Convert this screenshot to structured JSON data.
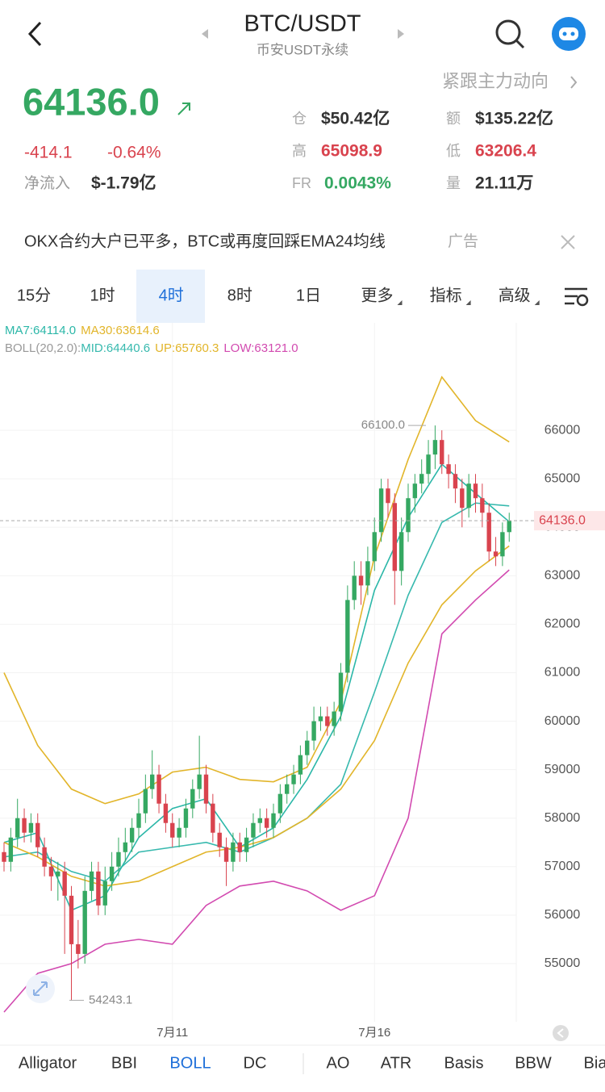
{
  "header": {
    "title": "BTC/USDT",
    "subtitle": "币安USDT永续",
    "promo": "紧跟主力动向"
  },
  "price": {
    "last": "64136.0",
    "change": "-414.1",
    "change_pct": "-0.64%",
    "net_inflow_label": "净流入",
    "net_inflow": "$-1.79亿"
  },
  "stats": [
    {
      "label": "仓",
      "value": "$50.42亿"
    },
    {
      "label": "额",
      "value": "$135.22亿"
    },
    {
      "label": "高",
      "value": "65098.9"
    },
    {
      "label": "低",
      "value": "63206.4"
    },
    {
      "label": "FR",
      "value": "0.0043%"
    },
    {
      "label": "量",
      "value": "21.11万"
    }
  ],
  "news": {
    "text": "OKX合约大户已平多，BTC或再度回踩EMA24均线",
    "tag": "广告"
  },
  "tabs": [
    "15分",
    "1时",
    "4时",
    "8时",
    "1日",
    "更多",
    "指标",
    "高级"
  ],
  "legend": {
    "row1": [
      "MA7:64114.0",
      "MA30:63614.6"
    ],
    "row2": [
      "BOLL(20,2.0):",
      "MID:64440.6",
      "UP:65760.3",
      "LOW:63121.0"
    ]
  },
  "bottom_tabs": [
    "Alligator",
    "BBI",
    "BOLL",
    "DC",
    "AO",
    "ATR",
    "Basis",
    "BBW",
    "Bia"
  ],
  "chart_data": {
    "type": "candlestick",
    "grid": true,
    "up_color": "#35a862",
    "down_color": "#d9434e",
    "ylim": [
      53800,
      68200
    ],
    "yticks": [
      55000,
      56000,
      57000,
      58000,
      59000,
      60000,
      61000,
      62000,
      63000,
      64000,
      65000,
      66000
    ],
    "categories": [
      null,
      null,
      null,
      null,
      null,
      null,
      null,
      null,
      null,
      null,
      null,
      null,
      null,
      null,
      null,
      null,
      null,
      null,
      null,
      null,
      null,
      null,
      null,
      null,
      null,
      "7月11",
      null,
      null,
      null,
      null,
      null,
      null,
      null,
      null,
      null,
      null,
      null,
      null,
      null,
      null,
      null,
      null,
      null,
      null,
      null,
      null,
      null,
      null,
      null,
      null,
      null,
      null,
      null,
      null,
      null,
      "7月16",
      null,
      null,
      null,
      null,
      null,
      null,
      null,
      null,
      null,
      null,
      null,
      null,
      null,
      null,
      null,
      null,
      null,
      null,
      null,
      null
    ],
    "open": [
      57300,
      57100,
      57600,
      58000,
      57700,
      57900,
      57400,
      57000,
      56800,
      56900,
      56400,
      55400,
      55200,
      56500,
      56900,
      56200,
      56700,
      57000,
      57300,
      57500,
      57800,
      58100,
      58600,
      58900,
      58300,
      57900,
      57600,
      57800,
      58200,
      58600,
      58900,
      58300,
      57700,
      57400,
      57100,
      57500,
      57300,
      57600,
      57900,
      58000,
      57800,
      58100,
      58500,
      58700,
      58900,
      59300,
      59600,
      60000,
      60100,
      59900,
      60200,
      61000,
      62500,
      63000,
      62800,
      63300,
      63900,
      64800,
      64500,
      63100,
      63900,
      64600,
      64900,
      65100,
      65500,
      65800,
      65300,
      65100,
      64800,
      64400,
      64900,
      64600,
      64300,
      63500,
      63400,
      63900
    ],
    "high": [
      57500,
      57800,
      58400,
      58200,
      58100,
      58100,
      57600,
      57200,
      57100,
      57100,
      56600,
      55900,
      56800,
      57100,
      57100,
      57000,
      57300,
      57600,
      57800,
      58000,
      58400,
      58900,
      59400,
      59100,
      58500,
      58100,
      58000,
      58400,
      58800,
      59700,
      59100,
      58500,
      57900,
      57600,
      57700,
      57700,
      57800,
      58100,
      58200,
      58200,
      58300,
      58700,
      58900,
      59100,
      59500,
      59800,
      60300,
      60300,
      60300,
      60400,
      61200,
      62800,
      63300,
      63300,
      63600,
      64200,
      65000,
      65000,
      64700,
      64200,
      64900,
      65100,
      65400,
      65800,
      66100,
      66000,
      65500,
      65300,
      65000,
      65100,
      65100,
      64900,
      64500,
      63800,
      64100,
      64300
    ],
    "low": [
      56900,
      56900,
      57400,
      57500,
      57500,
      57200,
      56800,
      56500,
      56300,
      55200,
      54243.1,
      54900,
      55000,
      56300,
      56000,
      56000,
      56500,
      56800,
      57100,
      57300,
      57600,
      57900,
      58400,
      58100,
      57700,
      57400,
      57400,
      57600,
      58000,
      58400,
      58100,
      57500,
      57200,
      56600,
      56900,
      57100,
      57100,
      57400,
      57700,
      57600,
      57600,
      57900,
      58300,
      58500,
      58700,
      59100,
      59400,
      59800,
      59700,
      59700,
      60000,
      60800,
      62300,
      62400,
      62600,
      63100,
      63700,
      64200,
      62400,
      62800,
      63700,
      64300,
      64700,
      64900,
      65200,
      65100,
      64800,
      64500,
      64000,
      64200,
      64300,
      64000,
      63300,
      63200,
      63200,
      63700
    ],
    "close": [
      57100,
      57600,
      58000,
      57700,
      57900,
      57400,
      57000,
      56800,
      56900,
      56400,
      55400,
      55200,
      56500,
      56900,
      56200,
      56700,
      57000,
      57300,
      57500,
      57800,
      58100,
      58600,
      58900,
      58300,
      57900,
      57600,
      57800,
      58200,
      58600,
      58900,
      58300,
      57700,
      57400,
      57100,
      57500,
      57300,
      57600,
      57900,
      58000,
      57800,
      58100,
      58500,
      58700,
      58900,
      59300,
      59600,
      60000,
      60100,
      59900,
      60200,
      61000,
      62500,
      63000,
      62800,
      63300,
      63900,
      64800,
      64500,
      63100,
      63900,
      64600,
      64900,
      65100,
      65500,
      65800,
      65300,
      65100,
      64800,
      64400,
      64900,
      64600,
      64300,
      63500,
      63400,
      63900,
      64136
    ],
    "lines": [
      {
        "color": "#e2b52a",
        "x": [
          0,
          5,
          10,
          15,
          20,
          25,
          30,
          35,
          40,
          45,
          50,
          55,
          60,
          65,
          70,
          75
        ],
        "values": [
          61000,
          59500,
          58600,
          58300,
          58500,
          58950,
          59050,
          58800,
          58750,
          59050,
          60400,
          63400,
          65400,
          67100,
          66200,
          65760.3
        ]
      },
      {
        "color": "#37b9ae",
        "x": [
          0,
          5,
          10,
          15,
          20,
          25,
          30,
          35,
          40,
          45,
          50,
          55,
          60,
          65,
          70,
          75
        ],
        "values": [
          57200,
          57300,
          56900,
          56700,
          57300,
          57400,
          57500,
          57300,
          57600,
          58000,
          58700,
          60600,
          62600,
          64100,
          64500,
          64440.6
        ]
      },
      {
        "color": "#d24ab0",
        "x": [
          0,
          5,
          10,
          15,
          20,
          25,
          30,
          35,
          40,
          45,
          50,
          55,
          60,
          65,
          70,
          75
        ],
        "values": [
          54000,
          54800,
          55000,
          55400,
          55500,
          55400,
          56200,
          56600,
          56700,
          56500,
          56100,
          56400,
          58000,
          61800,
          62500,
          63121
        ]
      },
      {
        "color": "#2bb7a8",
        "x": [
          0,
          5,
          10,
          15,
          20,
          25,
          30,
          35,
          40,
          45,
          50,
          55,
          60,
          65,
          70,
          75
        ],
        "values": [
          57500,
          57700,
          56100,
          56400,
          57600,
          58200,
          58400,
          57400,
          57800,
          58800,
          60100,
          62700,
          64200,
          65300,
          64700,
          64114
        ]
      },
      {
        "color": "#e2b52a",
        "x": [
          0,
          5,
          10,
          15,
          20,
          25,
          30,
          35,
          40,
          45,
          50,
          55,
          60,
          65,
          70,
          75
        ],
        "values": [
          57500,
          57200,
          56800,
          56600,
          56700,
          57000,
          57300,
          57400,
          57600,
          58000,
          58600,
          59600,
          61200,
          62400,
          63100,
          63614.6
        ]
      }
    ],
    "max_marker": {
      "value": 66100,
      "label": "66100.0"
    },
    "min_marker": 54243.1,
    "current_price": {
      "value": 64136,
      "label": "64136.0"
    }
  }
}
